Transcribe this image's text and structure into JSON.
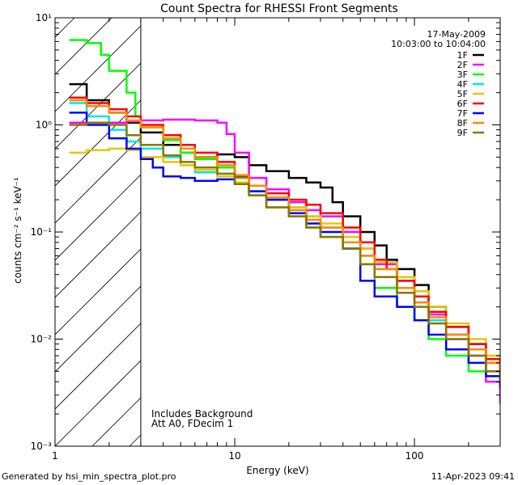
{
  "chart_data": {
    "type": "line",
    "title": "Count Spectra for RHESSI Front Segments",
    "xlabel": "Energy (keV)",
    "ylabel": "counts cm⁻² s⁻¹ keV⁻¹",
    "xscale": "log",
    "yscale": "log",
    "xlim": [
      1,
      300
    ],
    "ylim": [
      0.001,
      10
    ],
    "x_tick_labels": [
      {
        "value": 1,
        "label": "1"
      },
      {
        "value": 10,
        "label": "10"
      },
      {
        "value": 100,
        "label": "100"
      }
    ],
    "y_tick_labels": [
      {
        "value": 10,
        "label": "10¹"
      },
      {
        "value": 1,
        "label": "10⁰"
      },
      {
        "value": 0.1,
        "label": "10⁻¹"
      },
      {
        "value": 0.01,
        "label": "10⁻²"
      },
      {
        "value": 0.001,
        "label": "10⁻³"
      }
    ],
    "date": "17-May-2009",
    "time_range": "10:03:00 to 10:04:00",
    "annotation_lines": [
      "Includes Background",
      "Att A0, FDecim 1"
    ],
    "shaded_region_xmax": 3,
    "series": [
      {
        "name": "1F",
        "color": "#000000",
        "x": [
          1.2,
          1.5,
          2,
          2.5,
          3,
          4,
          5,
          6,
          8,
          10,
          12,
          15,
          20,
          25,
          30,
          35,
          40,
          50,
          60,
          70,
          80,
          100,
          120,
          150,
          200,
          250,
          300
        ],
        "y": [
          2.4,
          1.7,
          1.3,
          1.05,
          0.85,
          0.65,
          0.55,
          0.5,
          0.53,
          0.5,
          0.42,
          0.37,
          0.32,
          0.29,
          0.26,
          0.19,
          0.14,
          0.1,
          0.075,
          0.055,
          0.045,
          0.032,
          0.02,
          0.013,
          0.009,
          0.006,
          0.004
        ]
      },
      {
        "name": "2F",
        "color": "#ff00ff",
        "x": [
          1.2,
          1.5,
          2,
          2.5,
          3,
          4,
          5,
          6,
          7,
          8,
          9,
          10,
          12,
          15,
          20,
          25,
          30,
          40,
          50,
          60,
          80,
          100,
          120,
          150,
          200,
          250,
          300
        ],
        "y": [
          1.05,
          1.05,
          1.05,
          1.08,
          1.1,
          1.12,
          1.12,
          1.1,
          1.1,
          1.05,
          0.82,
          0.55,
          0.32,
          0.25,
          0.19,
          0.16,
          0.14,
          0.1,
          0.07,
          0.05,
          0.035,
          0.025,
          0.017,
          0.011,
          0.007,
          0.004,
          0.0025
        ]
      },
      {
        "name": "3F",
        "color": "#00ff00",
        "x": [
          1.2,
          1.5,
          1.8,
          2,
          2.5,
          2.8,
          3,
          4,
          5,
          6,
          8,
          10,
          12,
          15,
          20,
          25,
          30,
          40,
          50,
          60,
          80,
          100,
          120,
          150,
          200,
          250,
          300
        ],
        "y": [
          6.2,
          5.8,
          4.5,
          3.2,
          2.0,
          1.2,
          0.95,
          0.72,
          0.55,
          0.48,
          0.4,
          0.32,
          0.22,
          0.17,
          0.14,
          0.11,
          0.09,
          0.07,
          0.05,
          0.03,
          0.02,
          0.015,
          0.01,
          0.007,
          0.005,
          0.0045,
          0.004
        ]
      },
      {
        "name": "4F",
        "color": "#00e5e5",
        "x": [
          1.2,
          1.5,
          2,
          2.5,
          3,
          4,
          5,
          6,
          8,
          10,
          12,
          15,
          20,
          25,
          30,
          40,
          50,
          60,
          80,
          100,
          120,
          150,
          200,
          250,
          300
        ],
        "y": [
          1.6,
          1.2,
          0.9,
          0.7,
          0.6,
          0.5,
          0.42,
          0.36,
          0.33,
          0.28,
          0.24,
          0.2,
          0.17,
          0.14,
          0.11,
          0.08,
          0.06,
          0.045,
          0.03,
          0.022,
          0.015,
          0.01,
          0.007,
          0.005,
          0.0035
        ]
      },
      {
        "name": "5F",
        "color": "#e5c800",
        "x": [
          1.2,
          1.5,
          2,
          2.5,
          3,
          4,
          5,
          6,
          8,
          10,
          12,
          15,
          20,
          25,
          30,
          40,
          50,
          60,
          80,
          100,
          120,
          150,
          200,
          250,
          300
        ],
        "y": [
          0.55,
          0.58,
          0.6,
          0.58,
          0.5,
          0.45,
          0.42,
          0.38,
          0.33,
          0.29,
          0.24,
          0.2,
          0.17,
          0.14,
          0.12,
          0.09,
          0.07,
          0.052,
          0.038,
          0.028,
          0.02,
          0.014,
          0.01,
          0.007,
          0.005
        ]
      },
      {
        "name": "6F",
        "color": "#ff0000",
        "x": [
          1.2,
          1.5,
          2,
          2.5,
          3,
          4,
          5,
          6,
          8,
          10,
          12,
          15,
          20,
          25,
          30,
          40,
          50,
          60,
          70,
          80,
          100,
          120,
          150,
          200,
          250,
          300
        ],
        "y": [
          1.8,
          1.6,
          1.4,
          1.2,
          1.0,
          0.8,
          0.65,
          0.55,
          0.45,
          0.33,
          0.27,
          0.23,
          0.2,
          0.18,
          0.15,
          0.11,
          0.08,
          0.055,
          0.045,
          0.035,
          0.025,
          0.018,
          0.013,
          0.009,
          0.0065,
          0.005
        ]
      },
      {
        "name": "7F",
        "color": "#0000ff",
        "x": [
          1.2,
          1.5,
          2,
          2.5,
          3,
          3.5,
          4,
          5,
          6,
          8,
          10,
          12,
          15,
          20,
          25,
          30,
          40,
          50,
          60,
          80,
          100,
          120,
          150,
          200,
          250,
          300
        ],
        "y": [
          1.3,
          1.0,
          0.75,
          0.6,
          0.48,
          0.4,
          0.33,
          0.32,
          0.3,
          0.31,
          0.28,
          0.24,
          0.2,
          0.15,
          0.12,
          0.1,
          0.07,
          0.035,
          0.025,
          0.02,
          0.015,
          0.011,
          0.008,
          0.006,
          0.0045,
          0.0035
        ]
      },
      {
        "name": "8F",
        "color": "#ff8800",
        "x": [
          1.2,
          1.5,
          2,
          2.5,
          3,
          4,
          5,
          6,
          8,
          10,
          12,
          15,
          20,
          25,
          30,
          40,
          50,
          60,
          80,
          100,
          120,
          150,
          200,
          250,
          300
        ],
        "y": [
          1.7,
          1.5,
          1.3,
          1.1,
          0.95,
          0.75,
          0.6,
          0.5,
          0.42,
          0.34,
          0.27,
          0.21,
          0.16,
          0.13,
          0.11,
          0.08,
          0.06,
          0.045,
          0.03,
          0.022,
          0.016,
          0.011,
          0.008,
          0.006,
          0.005
        ]
      },
      {
        "name": "9F",
        "color": "#8b7500",
        "x": [
          1.2,
          1.5,
          2,
          2.5,
          3,
          4,
          5,
          6,
          8,
          10,
          12,
          15,
          20,
          25,
          30,
          40,
          50,
          60,
          80,
          100,
          120,
          150,
          200,
          250,
          300
        ],
        "y": [
          1.0,
          1.05,
          1.0,
          0.8,
          0.65,
          0.52,
          0.45,
          0.4,
          0.35,
          0.28,
          0.22,
          0.17,
          0.14,
          0.11,
          0.09,
          0.07,
          0.05,
          0.038,
          0.027,
          0.02,
          0.014,
          0.01,
          0.007,
          0.005,
          0.004
        ]
      }
    ]
  },
  "footer": {
    "generator": "Generated by hsi_min_spectra_plot.pro",
    "timestamp": "11-Apr-2023 09:41"
  }
}
